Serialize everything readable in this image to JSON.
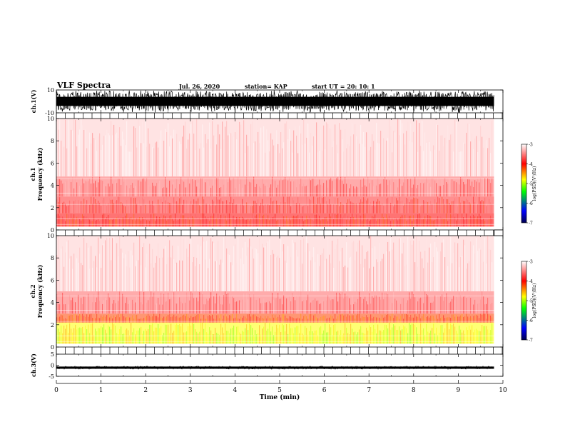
{
  "header": {
    "title": "VLF Spectra",
    "date": "Jul. 26, 2020",
    "station": "station= KAP",
    "start": "start  UT  =   20: 10: 1"
  },
  "chart_data": [
    {
      "type": "line",
      "ylabel": "ch.1(V)",
      "ylim": [
        -10,
        10
      ],
      "yticks": [
        "10",
        "-10"
      ],
      "xlim": [
        0,
        10
      ]
    },
    {
      "type": "heatmap",
      "ylabel": "ch.1\nFrequency (kHz)",
      "ylabel_lines": [
        "ch.1",
        "Frequency  (kHz)"
      ],
      "ylim": [
        0,
        10
      ],
      "yticks": [
        "0",
        "2",
        "4",
        "6",
        "8",
        "10"
      ],
      "xlim": [
        0,
        10
      ],
      "colorbar": {
        "label": "log(PSD)(V²/Hz)",
        "range": [
          -7,
          -3
        ],
        "ticks": [
          "-3",
          "-4",
          "-5",
          "-6",
          "-7"
        ],
        "colors": [
          "#000050",
          "#0000ff",
          "#00ff00",
          "#ffff00",
          "#ff0000",
          "#ffffff"
        ]
      },
      "bands_khz": [
        {
          "from": 0.3,
          "to": 1.5,
          "level": -4.0
        },
        {
          "from": 1.5,
          "to": 3.0,
          "level": -3.8
        },
        {
          "from": 3.0,
          "to": 4.8,
          "level": -3.6
        },
        {
          "from": 4.8,
          "to": 10.0,
          "level": -3.2
        }
      ]
    },
    {
      "type": "heatmap",
      "ylabel": "ch.2\nFrequency (kHz)",
      "ylabel_lines": [
        "ch.2",
        "Frequency  (kHz)"
      ],
      "ylim": [
        0,
        10
      ],
      "yticks": [
        "0",
        "2",
        "4",
        "6",
        "8",
        "10"
      ],
      "xlim": [
        0,
        10
      ],
      "colorbar": {
        "label": "log(PSD)(V²/Hz)",
        "range": [
          -7,
          -3
        ],
        "ticks": [
          "-3",
          "-4",
          "-5",
          "-6",
          "-7"
        ],
        "colors": [
          "#000050",
          "#0000ff",
          "#00ff00",
          "#ffff00",
          "#ff0000",
          "#ffffff"
        ]
      },
      "bands_khz": [
        {
          "from": 0.3,
          "to": 2.2,
          "level": -4.8
        },
        {
          "from": 2.2,
          "to": 3.0,
          "level": -4.2
        },
        {
          "from": 3.0,
          "to": 5.0,
          "level": -3.6
        },
        {
          "from": 5.0,
          "to": 10.0,
          "level": -3.2
        }
      ]
    },
    {
      "type": "line",
      "ylabel": "ch.3(V)",
      "ylim": [
        -5,
        5
      ],
      "yticks": [
        "5",
        "0",
        "-5"
      ],
      "xlim": [
        0,
        10
      ]
    }
  ],
  "xaxis": {
    "label": "Time  (min)",
    "range": [
      0,
      10
    ],
    "ticks": [
      "0",
      "1",
      "2",
      "3",
      "4",
      "5",
      "6",
      "7",
      "8",
      "9",
      "10"
    ],
    "data_end": 9.8
  }
}
